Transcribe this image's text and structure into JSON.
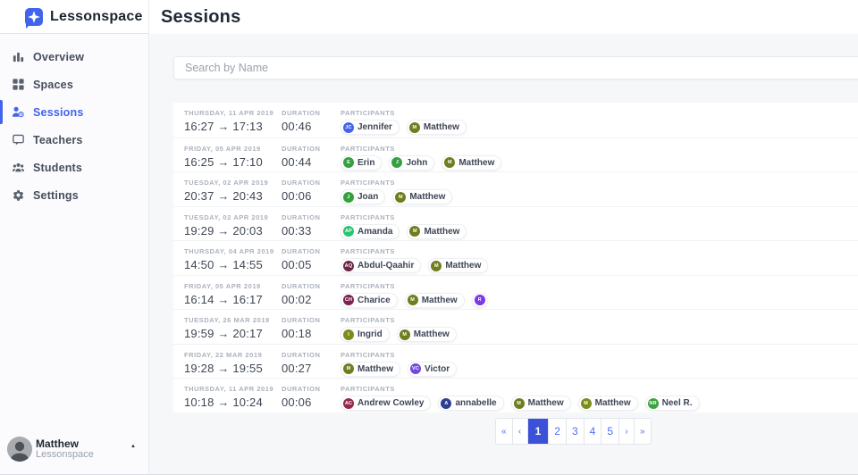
{
  "brand": {
    "name": "Lessonspace"
  },
  "page_title": "Sessions",
  "search": {
    "placeholder": "Search by Name"
  },
  "sidebar": {
    "items": [
      {
        "label": "Overview",
        "icon": "bar-chart",
        "active": false
      },
      {
        "label": "Spaces",
        "icon": "grid",
        "active": false
      },
      {
        "label": "Sessions",
        "icon": "user-clock",
        "active": true
      },
      {
        "label": "Teachers",
        "icon": "board",
        "active": false
      },
      {
        "label": "Students",
        "icon": "people",
        "active": false
      },
      {
        "label": "Settings",
        "icon": "gear",
        "active": false
      }
    ]
  },
  "table": {
    "duration_label": "DURATION",
    "participants_label": "PARTICIPANTS"
  },
  "icons": {
    "arrow": "→",
    "caret_up": "▲"
  },
  "sessions": [
    {
      "date": "THURSDAY, 11 APR 2019",
      "start": "16:27",
      "end": "17:13",
      "duration": "00:46",
      "participants": [
        {
          "name": "Jennifer",
          "initials": "JC",
          "color": "#4263eb"
        },
        {
          "name": "Matthew",
          "initials": "M",
          "color": "#6f7d1e"
        }
      ]
    },
    {
      "date": "FRIDAY, 05 APR 2019",
      "start": "16:25",
      "end": "17:10",
      "duration": "00:44",
      "participants": [
        {
          "name": "Erin",
          "initials": "E",
          "color": "#34a13e"
        },
        {
          "name": "John",
          "initials": "J",
          "color": "#34a13e"
        },
        {
          "name": "Matthew",
          "initials": "M",
          "color": "#6f7d1e"
        }
      ]
    },
    {
      "date": "TUESDAY, 02 APR 2019",
      "start": "20:37",
      "end": "20:43",
      "duration": "00:06",
      "participants": [
        {
          "name": "Joan",
          "initials": "J",
          "color": "#34a13e"
        },
        {
          "name": "Matthew",
          "initials": "M",
          "color": "#6f7d1e"
        }
      ]
    },
    {
      "date": "TUESDAY, 02 APR 2019",
      "start": "19:29",
      "end": "20:03",
      "duration": "00:33",
      "participants": [
        {
          "name": "Amanda",
          "initials": "AP",
          "color": "#29c46f"
        },
        {
          "name": "Matthew",
          "initials": "M",
          "color": "#6f7d1e"
        }
      ]
    },
    {
      "date": "THURSDAY, 04 APR 2019",
      "start": "14:50",
      "end": "14:55",
      "duration": "00:05",
      "participants": [
        {
          "name": "Abdul-Qaahir",
          "initials": "AQ",
          "color": "#6d2547"
        },
        {
          "name": "Matthew",
          "initials": "M",
          "color": "#6f7d1e"
        }
      ]
    },
    {
      "date": "FRIDAY, 05 APR 2019",
      "start": "16:14",
      "end": "16:17",
      "duration": "00:02",
      "participants": [
        {
          "name": "Charice",
          "initials": "CH",
          "color": "#7c2350"
        },
        {
          "name": "Matthew",
          "initials": "M",
          "color": "#6f7d1e"
        },
        {
          "name": "",
          "initials": "R",
          "color": "#7d36ea"
        }
      ]
    },
    {
      "date": "TUESDAY, 26 MAR 2019",
      "start": "19:59",
      "end": "20:17",
      "duration": "00:18",
      "participants": [
        {
          "name": "Ingrid",
          "initials": "I",
          "color": "#7d8b1d"
        },
        {
          "name": "Matthew",
          "initials": "M",
          "color": "#6f7d1e"
        }
      ]
    },
    {
      "date": "FRIDAY, 22 MAR 2019",
      "start": "19:28",
      "end": "19:55",
      "duration": "00:27",
      "participants": [
        {
          "name": "Matthew",
          "initials": "M",
          "color": "#6f7d1e"
        },
        {
          "name": "Victor",
          "initials": "VC",
          "color": "#7447e1"
        }
      ]
    },
    {
      "date": "THURSDAY, 11 APR 2019",
      "start": "10:18",
      "end": "10:24",
      "duration": "00:06",
      "participants": [
        {
          "name": "Andrew Cowley",
          "initials": "AC",
          "color": "#93294b"
        },
        {
          "name": "annabelle",
          "initials": "A",
          "color": "#2d3f8f"
        },
        {
          "name": "Matthew",
          "initials": "M",
          "color": "#6f7d1e"
        },
        {
          "name": "Matthew",
          "initials": "M",
          "color": "#7d8b1d"
        },
        {
          "name": "Neel R.",
          "initials": "NR",
          "color": "#3aa33f"
        }
      ]
    }
  ],
  "pagination": {
    "first": "«",
    "prev": "‹",
    "pages": [
      "1",
      "2",
      "3",
      "4",
      "5"
    ],
    "active": "1",
    "next": "›",
    "last": "»"
  },
  "user": {
    "name": "Matthew",
    "org": "Lessonspace"
  },
  "colors": {
    "accent": "#4263eb",
    "accent_dark": "#3b51d8",
    "page_bg": "#f6f7f9",
    "label_gray": "#abb1bd",
    "text_dark": "#222b38",
    "text_mid": "#3e4654",
    "pagination_blue": "#4c6ef5"
  }
}
